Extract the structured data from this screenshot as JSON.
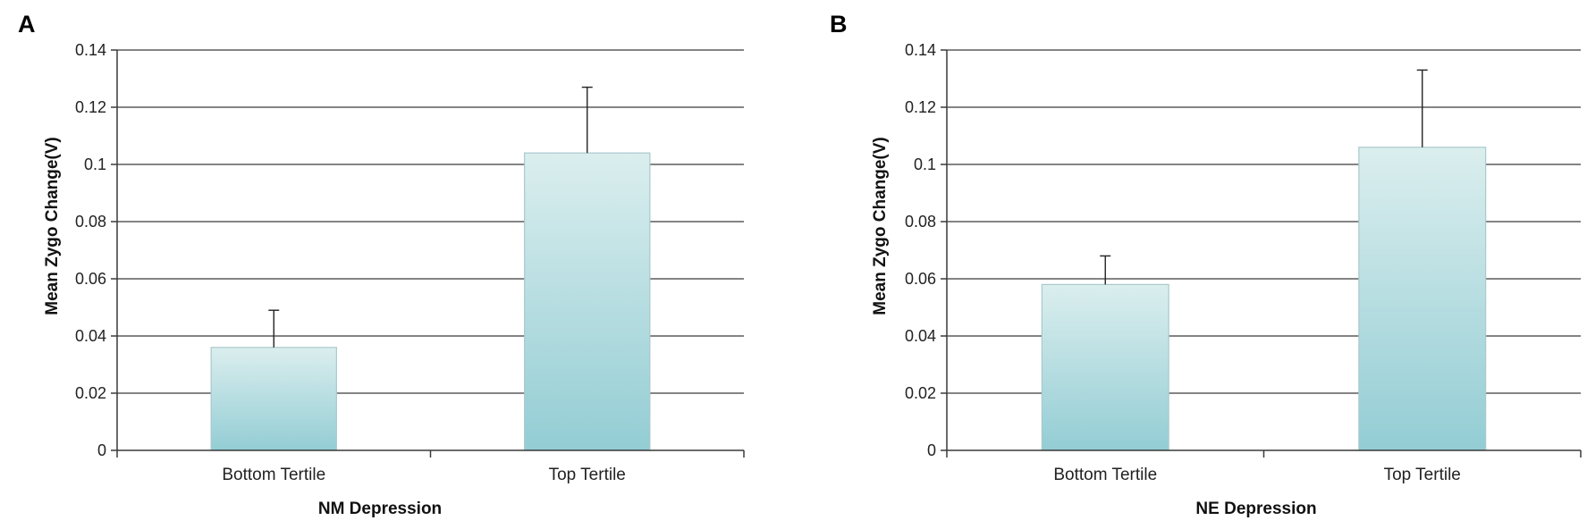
{
  "chart_data": [
    {
      "type": "bar",
      "panel": "A",
      "categories": [
        "Bottom Tertile",
        "Top Tertile"
      ],
      "values": [
        0.036,
        0.104
      ],
      "error_plus": [
        0.013,
        0.023
      ],
      "title": "",
      "xlabel": "NM Depression",
      "ylabel": "Mean Zygo Change(V)",
      "ylim": [
        0,
        0.14
      ],
      "yticks": [
        "0",
        "0.02",
        "0.04",
        "0.06",
        "0.08",
        "0.1",
        "0.12",
        "0.14"
      ],
      "grid": true
    },
    {
      "type": "bar",
      "panel": "B",
      "categories": [
        "Bottom Tertile",
        "Top Tertile"
      ],
      "values": [
        0.058,
        0.106
      ],
      "error_plus": [
        0.01,
        0.027
      ],
      "title": "",
      "xlabel": "NE Depression",
      "ylabel": "Mean Zygo Change(V)",
      "ylim": [
        0,
        0.14
      ],
      "yticks": [
        "0",
        "0.02",
        "0.04",
        "0.06",
        "0.08",
        "0.1",
        "0.12",
        "0.14"
      ],
      "grid": true
    }
  ],
  "colors": {
    "bar_top": "#dbeeee",
    "bar_bottom": "#93cdd4",
    "grid": "#3a3a3a"
  }
}
